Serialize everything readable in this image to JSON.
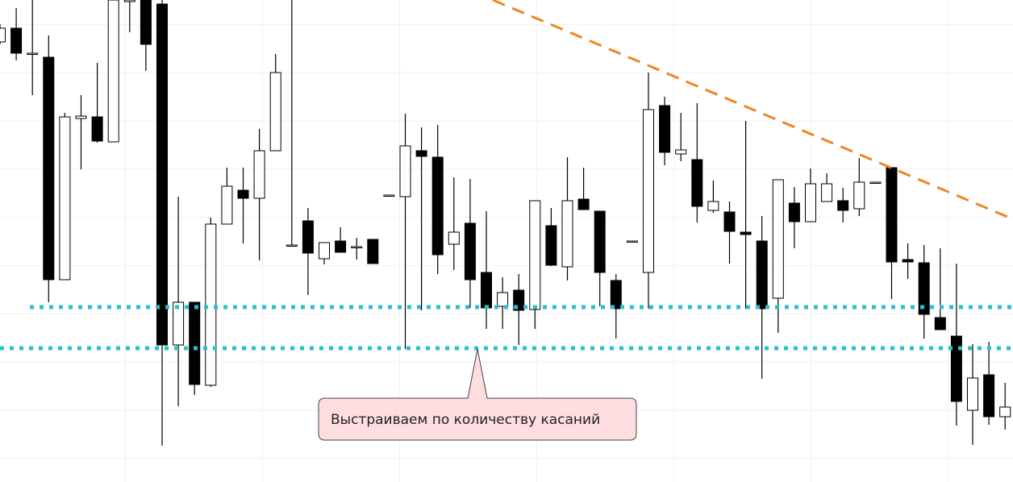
{
  "chart_data": {
    "type": "candlestick",
    "ylim": [
      0,
      598
    ],
    "up_color": "#ffffff",
    "down_color": "#000000",
    "open": [
      546,
      563,
      532,
      527,
      251,
      451,
      453,
      422,
      596,
      598,
      593,
      170,
      223,
      120,
      320,
      362,
      352,
      411,
      294,
      324,
      277,
      299,
      292,
      301,
      356,
      354,
      411,
      403,
      295,
      321,
      260,
      218,
      238,
      214,
      318,
      267,
      351,
      336,
      250,
      299,
      260,
      467,
      407,
      400,
      337,
      335,
      310,
      299,
      228,
      346,
      323,
      348,
      349,
      339,
      372,
      390,
      276,
      272,
      204,
      181,
      89,
      133,
      81
    ],
    "close": [
      563,
      532,
      532,
      251,
      453,
      454,
      423,
      598,
      598,
      543,
      170,
      223,
      121,
      320,
      367,
      352,
      411,
      508,
      294,
      284,
      297,
      285,
      292,
      271,
      356,
      417,
      404,
      282,
      310,
      251,
      216,
      235,
      213,
      349,
      269,
      349,
      338,
      260,
      215,
      299,
      462,
      409,
      412,
      342,
      348,
      311,
      307,
      215,
      375,
      323,
      370,
      370,
      337,
      372,
      372,
      273,
      273,
      208,
      189,
      100,
      129,
      81,
      93
    ],
    "high": [
      568,
      588,
      598,
      554,
      458,
      480,
      520,
      598,
      598,
      598,
      598,
      354,
      223,
      328,
      390,
      390,
      438,
      531,
      598,
      340,
      297,
      316,
      303,
      301,
      356,
      457,
      440,
      443,
      378,
      376,
      336,
      254,
      258,
      349,
      340,
      403,
      390,
      336,
      258,
      299,
      508,
      478,
      458,
      470,
      374,
      348,
      448,
      330,
      375,
      366,
      389,
      383,
      365,
      402,
      372,
      390,
      296,
      294,
      290,
      271,
      171,
      174,
      123
    ],
    "low": [
      543,
      523,
      480,
      223,
      251,
      388,
      421,
      422,
      558,
      510,
      45,
      94,
      108,
      118,
      320,
      296,
      275,
      411,
      294,
      232,
      270,
      285,
      276,
      271,
      356,
      165,
      213,
      258,
      263,
      216,
      190,
      190,
      170,
      190,
      268,
      250,
      338,
      218,
      178,
      299,
      215,
      393,
      398,
      322,
      334,
      271,
      215,
      128,
      185,
      290,
      323,
      348,
      322,
      330,
      372,
      227,
      252,
      178,
      189,
      70,
      46,
      71,
      65
    ],
    "hlines": [
      {
        "value": 217,
        "color": "#2bbfd0"
      },
      {
        "value": 166,
        "color": "#2bbfd0"
      }
    ],
    "trendline": {
      "x": [
        30.4,
        62.5
      ],
      "values": [
        598,
        326
      ],
      "color": "#f08524"
    },
    "annotation": "Выстраиваем по количеству касаний"
  }
}
